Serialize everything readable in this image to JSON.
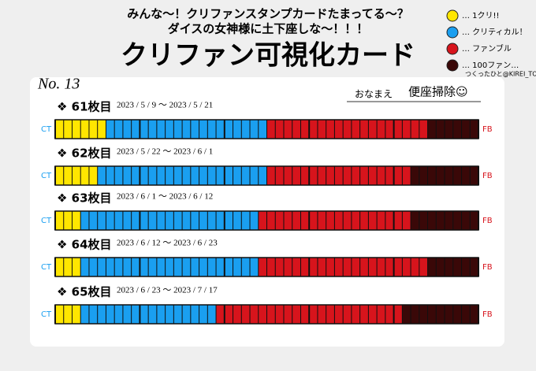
{
  "header": {
    "lines": [
      "みんな〜！クリファンスタンプカードたまってる〜？",
      "ダイスの女神様に土下座しな〜！！！"
    ],
    "title": "クリファン可視化カード"
  },
  "legend": {
    "items": [
      {
        "label": "… 1クリ!!",
        "color": "#ffe600"
      },
      {
        "label": "… クリティカル！",
        "color": "#1a9ff0"
      },
      {
        "label": "… ファンブル",
        "color": "#d7141c"
      },
      {
        "label": "… 100ファン…",
        "color": "#3a0808"
      }
    ]
  },
  "credit": "つくったひと@KIREI_TOILET",
  "card": {
    "number": "No. 13",
    "name_label": "おなまえ",
    "name": "便座掃除☺",
    "ct_label": "CT",
    "fb_label": "FB",
    "rows": [
      {
        "label": "❖ 61枚目",
        "dates": "2023 / 5 / 9 〜 2023 / 5 / 21",
        "counts": [
          6,
          19,
          19,
          6
        ]
      },
      {
        "label": "❖ 62枚目",
        "dates": "2023 / 5 / 22 〜 2023 / 6 / 1",
        "counts": [
          5,
          20,
          17,
          8
        ]
      },
      {
        "label": "❖ 63枚目",
        "dates": "2023 / 6 / 1 〜 2023 / 6 / 12",
        "counts": [
          3,
          21,
          18,
          8
        ]
      },
      {
        "label": "❖ 64枚目",
        "dates": "2023 / 6 / 12 〜 2023 / 6 / 23",
        "counts": [
          3,
          21,
          20,
          6
        ]
      },
      {
        "label": "❖ 65枚目",
        "dates": "2023 / 6 / 23 〜 2023 / 7 / 17",
        "counts": [
          3,
          16,
          22,
          9
        ]
      }
    ]
  }
}
